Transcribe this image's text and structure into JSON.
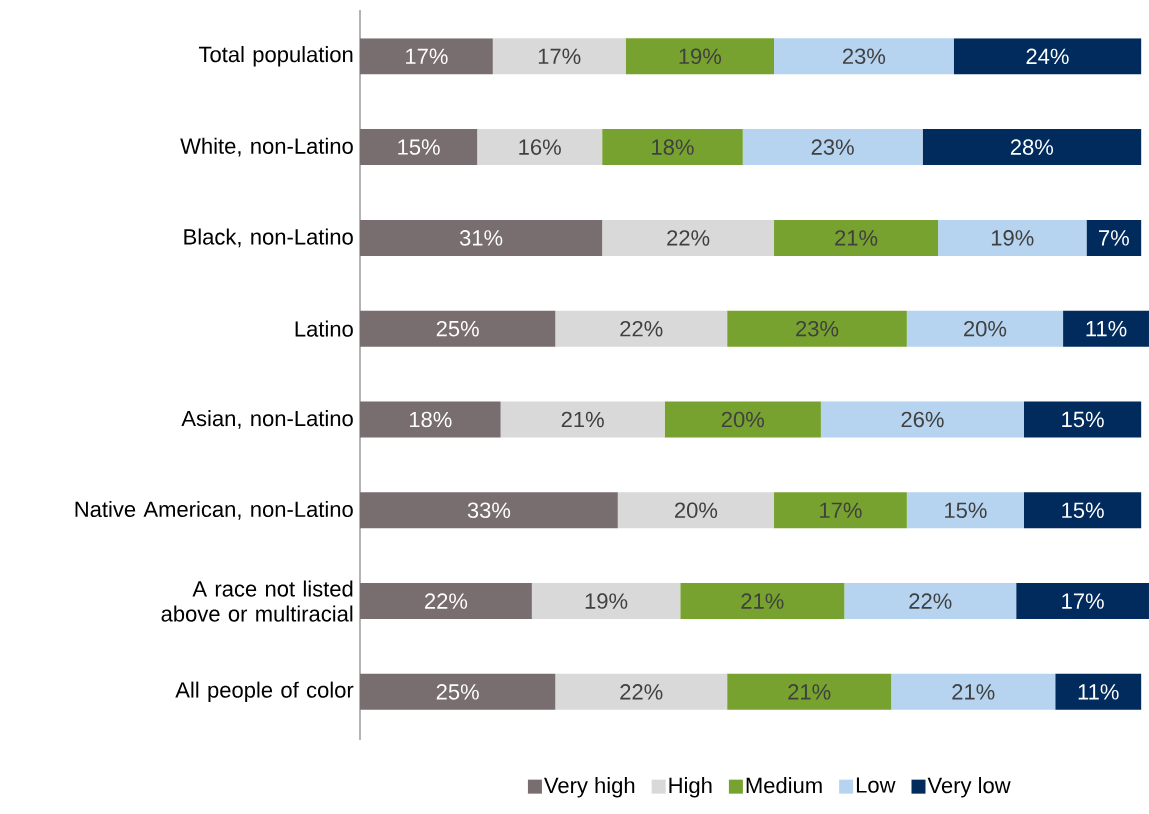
{
  "chart_data": {
    "type": "bar",
    "orientation": "horizontal",
    "stacked": true,
    "legend": "bottom",
    "categories": [
      "Total population",
      "White, non-Latino",
      "Black, non-Latino",
      "Latino",
      "Asian, non-Latino",
      "Native American, non-Latino",
      "A race not listed above or multiracial",
      "All people of color"
    ],
    "series": [
      {
        "name": "Very high",
        "color": "#786d6f",
        "values": [
          17,
          15,
          31,
          25,
          18,
          33,
          22,
          25
        ],
        "value_labels": [
          "17%",
          "15%",
          "31%",
          "25%",
          "18%",
          "33%",
          "22%",
          "25%"
        ]
      },
      {
        "name": "High",
        "color": "#d9d9d9",
        "values": [
          17,
          16,
          22,
          22,
          21,
          20,
          19,
          22
        ],
        "value_labels": [
          "17%",
          "16%",
          "22%",
          "22%",
          "21%",
          "20%",
          "19%",
          "22%"
        ]
      },
      {
        "name": "Medium",
        "color": "#77a22f",
        "values": [
          19,
          18,
          21,
          23,
          20,
          17,
          21,
          21
        ],
        "value_labels": [
          "19%",
          "18%",
          "21%",
          "23%",
          "20%",
          "17%",
          "21%",
          "21%"
        ]
      },
      {
        "name": "Low",
        "color": "#b6d4ef",
        "values": [
          23,
          23,
          19,
          20,
          26,
          15,
          22,
          21
        ],
        "value_labels": [
          "23%",
          "23%",
          "19%",
          "20%",
          "26%",
          "15%",
          "22%",
          "21%"
        ]
      },
      {
        "name": "Very low",
        "color": "#002b5c",
        "values": [
          24,
          28,
          7,
          11,
          15,
          15,
          17,
          11
        ],
        "value_labels": [
          "24%",
          "28%",
          "7%",
          "11%",
          "15%",
          "15%",
          "17%",
          "11%"
        ]
      }
    ]
  }
}
